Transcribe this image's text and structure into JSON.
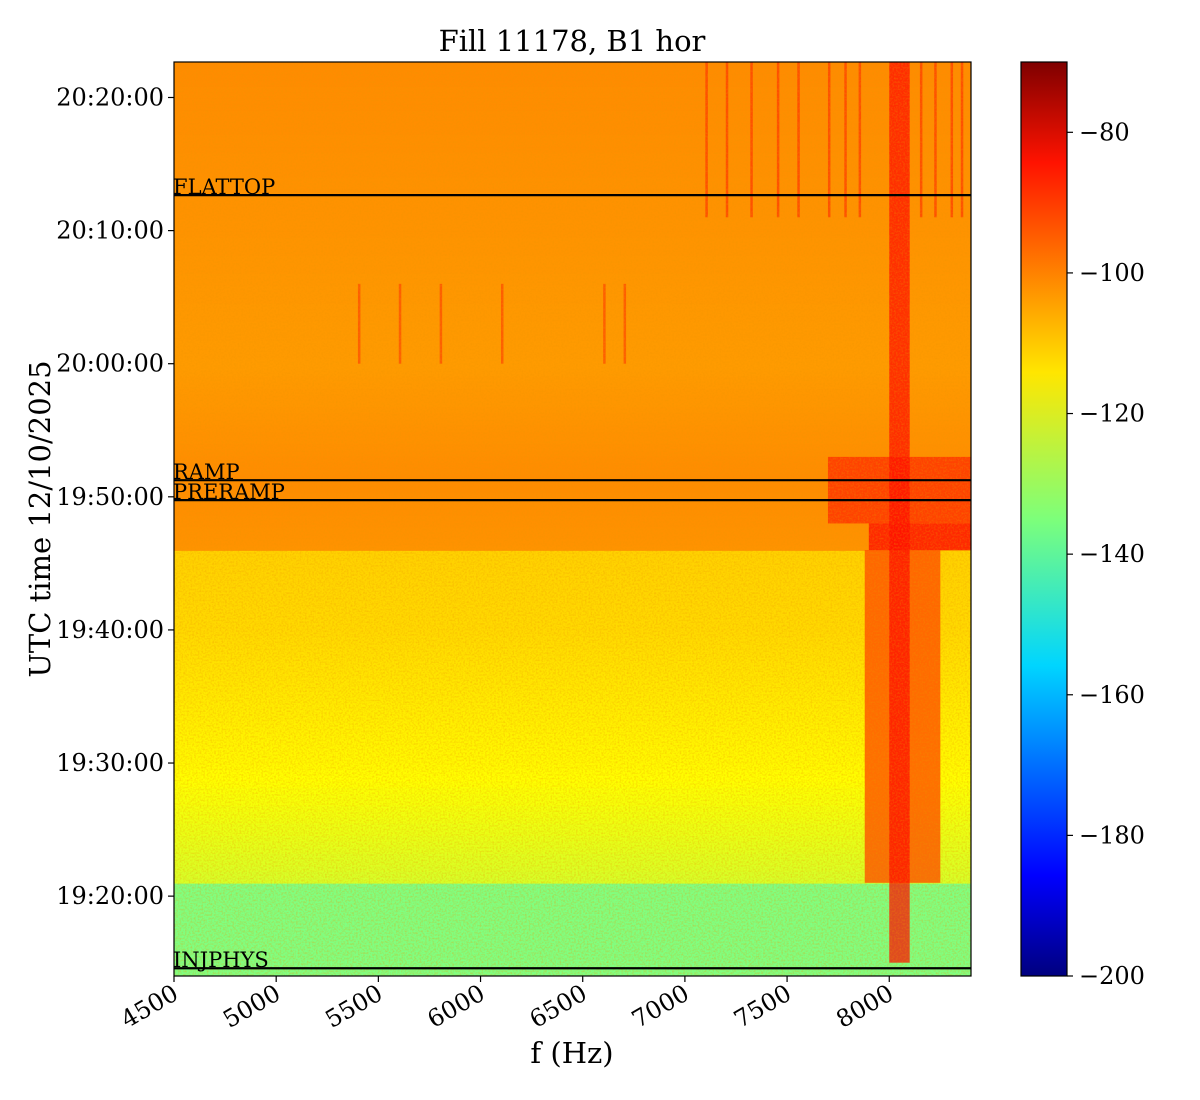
{
  "chart_data": {
    "type": "heatmap",
    "title": "Fill 11178, B1 hor",
    "xlabel": "f (Hz)",
    "ylabel": "UTC time 12/10/2025",
    "xlim": [
      4500,
      8400
    ],
    "ylim": [
      "19:14:00",
      "20:22:40"
    ],
    "x_ticks": [
      "4500",
      "5000",
      "5500",
      "6000",
      "6500",
      "7000",
      "7500",
      "8000"
    ],
    "y_ticks": [
      "19:20:00",
      "19:30:00",
      "19:40:00",
      "19:50:00",
      "20:00:00",
      "20:10:00",
      "20:20:00"
    ],
    "colorbar": {
      "colormap": "jet",
      "range": [
        -200,
        -70
      ],
      "ticks": [
        "-80",
        "-100",
        "-120",
        "-140",
        "-160",
        "-180",
        "-200"
      ],
      "ticks_value": [
        -80,
        -100,
        -120,
        -140,
        -160,
        -180,
        -200
      ]
    },
    "phase_markers": [
      {
        "label": "FLATTOP",
        "time": "20:12:40"
      },
      {
        "label": "RAMP",
        "time": "19:51:15"
      },
      {
        "label": "PRERAMP",
        "time": "19:49:45"
      },
      {
        "label": "INJPHYS",
        "time": "19:14:35"
      }
    ],
    "intensity_profile": [
      {
        "time": "19:14:00",
        "level": -135
      },
      {
        "time": "19:21:00",
        "level": -135
      },
      {
        "time": "19:21:00",
        "level": -124
      },
      {
        "time": "19:30:00",
        "level": -118
      },
      {
        "time": "19:40:00",
        "level": -114
      },
      {
        "time": "19:46:00",
        "level": -113
      },
      {
        "time": "19:46:00",
        "level": -105
      },
      {
        "time": "19:51:15",
        "level": -104
      },
      {
        "time": "20:00:00",
        "level": -106
      },
      {
        "time": "20:10:00",
        "level": -105
      },
      {
        "time": "20:22:40",
        "level": -104
      }
    ],
    "colors": {
      "frame": "#000000",
      "background": "#ffffff"
    }
  }
}
